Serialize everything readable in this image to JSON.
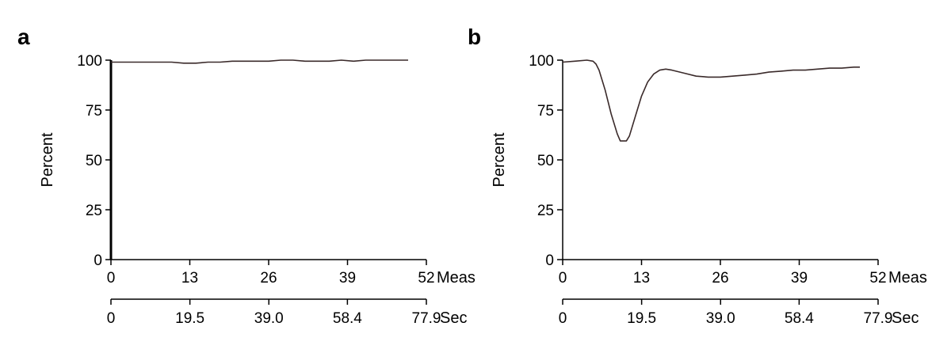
{
  "chart_data": [
    {
      "type": "line",
      "panel": "a",
      "ylabel": "Percent",
      "ylim": [
        0,
        100
      ],
      "yticks": [
        "0",
        "25",
        "50",
        "75",
        "100"
      ],
      "x_axes": [
        {
          "unit": "Meas",
          "lim": [
            0,
            52
          ],
          "ticks": [
            "0",
            "13",
            "26",
            "39",
            "52"
          ]
        },
        {
          "unit": "Sec",
          "lim": [
            0,
            77.9
          ],
          "ticks": [
            "0",
            "19.5",
            "39.0",
            "58.4",
            "77.9"
          ]
        }
      ],
      "grid": false,
      "series": [
        {
          "x": [
            0,
            2,
            4,
            6,
            8,
            10,
            12,
            14,
            16,
            18,
            20,
            22,
            24,
            26,
            28,
            30,
            32,
            34,
            36,
            38,
            40,
            42,
            44,
            46,
            48,
            49
          ],
          "y": [
            99,
            99,
            99,
            99,
            99,
            99,
            98.5,
            98.5,
            99,
            99,
            99.5,
            99.5,
            99.5,
            99.5,
            100,
            100,
            99.5,
            99.5,
            99.5,
            100,
            99.5,
            100,
            100,
            100,
            100,
            100
          ]
        }
      ]
    },
    {
      "type": "line",
      "panel": "b",
      "ylabel": "Percent",
      "ylim": [
        0,
        100
      ],
      "yticks": [
        "0",
        "25",
        "50",
        "75",
        "100"
      ],
      "x_axes": [
        {
          "unit": "Meas",
          "lim": [
            0,
            52
          ],
          "ticks": [
            "0",
            "13",
            "26",
            "39",
            "52"
          ]
        },
        {
          "unit": "Sec",
          "lim": [
            0,
            77.9
          ],
          "ticks": [
            "0",
            "19.5",
            "39.0",
            "58.4",
            "77.9"
          ]
        }
      ],
      "grid": false,
      "series": [
        {
          "x": [
            0,
            2,
            4,
            5,
            5.5,
            6,
            7,
            8,
            9,
            9.5,
            10,
            10.5,
            11,
            12,
            13,
            14,
            15,
            16,
            17,
            18,
            20,
            22,
            24,
            26,
            28,
            30,
            32,
            34,
            36,
            38,
            40,
            42,
            44,
            46,
            48,
            49
          ],
          "y": [
            99,
            99.5,
            100,
            99.5,
            98,
            95,
            85,
            73,
            63,
            59.5,
            59.5,
            59.5,
            62,
            72,
            82,
            89,
            93,
            95,
            95.5,
            95,
            93.5,
            92,
            91.5,
            91.5,
            92,
            92.5,
            93,
            94,
            94.5,
            95,
            95,
            95.5,
            96,
            96,
            96.5,
            96.5
          ]
        }
      ]
    }
  ]
}
